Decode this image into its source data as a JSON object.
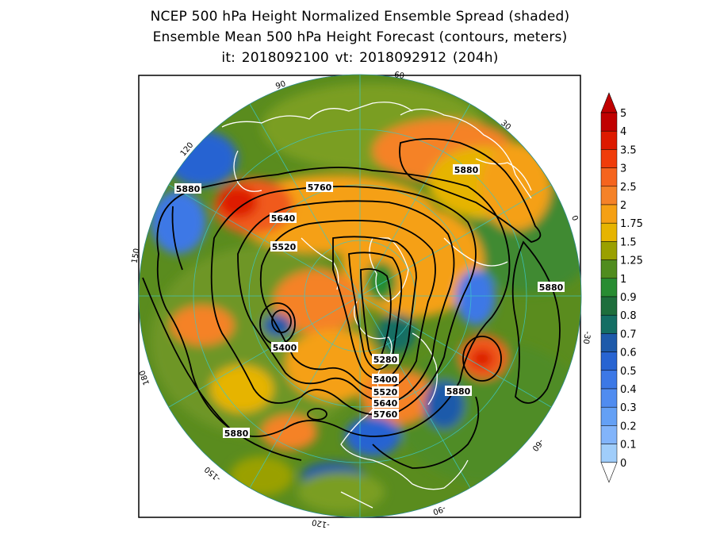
{
  "titles": {
    "line1": "NCEP 500 hPa Height Normalized Ensemble Spread (shaded)",
    "line2": "Ensemble Mean 500 hPa Height Forecast (contours, meters)",
    "line3": "it: 2018092100      vt: 2018092912 (204h)"
  },
  "map": {
    "projection": "north-polar-stereographic",
    "longitude_labels": [
      "90",
      "60",
      "30",
      "0",
      "-30",
      "-60",
      "-90",
      "-120",
      "-150",
      "180",
      "150",
      "120"
    ],
    "contour_labels": [
      "5880",
      "5760",
      "5640",
      "5520",
      "5400",
      "5280",
      "5400",
      "5520",
      "5640",
      "5760",
      "5880",
      "5880",
      "5880",
      "5880"
    ],
    "coastline_color": "#ffffff",
    "contour_color": "#000000"
  },
  "colorbar": {
    "labels": [
      "5",
      "4",
      "3.5",
      "3",
      "2.5",
      "2",
      "1.75",
      "1.5",
      "1.25",
      "1",
      "0.9",
      "0.8",
      "0.7",
      "0.6",
      "0.5",
      "0.4",
      "0.3",
      "0.2",
      "0.1",
      "0"
    ],
    "colors": [
      "#c00000",
      "#dd1a00",
      "#f03c0a",
      "#f5641e",
      "#f58228",
      "#f5a014",
      "#e6b400",
      "#9aa000",
      "#508c1e",
      "#288c32",
      "#1e6e3c",
      "#146e64",
      "#1e5aaa",
      "#2864d2",
      "#3c78e6",
      "#508cf0",
      "#64a0f5",
      "#82b4fa",
      "#a0cdfa"
    ]
  }
}
